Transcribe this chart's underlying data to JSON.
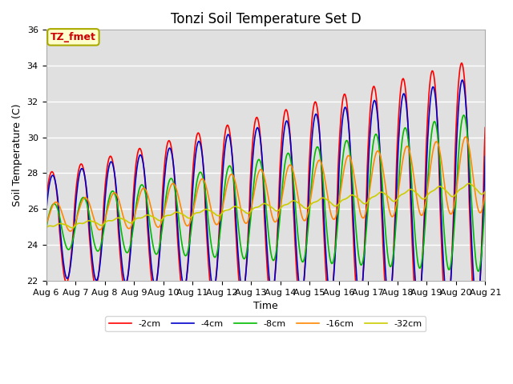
{
  "title": "Tonzi Soil Temperature Set D",
  "xlabel": "Time",
  "ylabel": "Soil Temperature (C)",
  "ylim": [
    22,
    36
  ],
  "annotation_text": "TZ_fmet",
  "legend_labels": [
    "-2cm",
    "-4cm",
    "-8cm",
    "-16cm",
    "-32cm"
  ],
  "line_colors": [
    "#ff0000",
    "#0000cc",
    "#00bb00",
    "#ff8800",
    "#cccc00"
  ],
  "x_tick_labels": [
    "Aug 6",
    "Aug 7",
    "Aug 8",
    "Aug 9",
    "Aug 10",
    "Aug 11",
    "Aug 12",
    "Aug 13",
    "Aug 14",
    "Aug 15",
    "Aug 16",
    "Aug 17",
    "Aug 18",
    "Aug 19",
    "Aug 20",
    "Aug 21"
  ],
  "background_color": "#ffffff",
  "plot_bg_color": "#e0e0e0",
  "grid_color": "#ffffff",
  "title_fontsize": 12,
  "axis_fontsize": 9,
  "tick_fontsize": 8
}
